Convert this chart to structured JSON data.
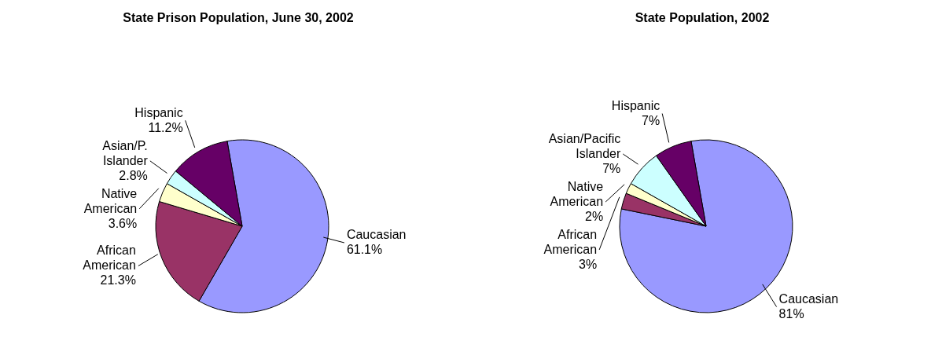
{
  "chart_data": [
    {
      "type": "pie",
      "title": "State Prison Population, June 30, 2002",
      "categories": [
        "Caucasian",
        "African American",
        "Native American",
        "Asian/P. Islander",
        "Hispanic"
      ],
      "values": [
        61.1,
        21.3,
        3.6,
        2.8,
        11.2
      ],
      "value_labels": [
        "61.1%",
        "21.3%",
        "3.6%",
        "2.8%",
        "11.2%"
      ],
      "colors": [
        "#9999ff",
        "#993366",
        "#ffffcc",
        "#ccffff",
        "#660066"
      ],
      "legend": false
    },
    {
      "type": "pie",
      "title": "State Population, 2002",
      "categories": [
        "Caucasian",
        "African American",
        "Native American",
        "Asian/Pacific Islander",
        "Hispanic"
      ],
      "values": [
        81,
        3,
        2,
        7,
        7
      ],
      "value_labels": [
        "81%",
        "3%",
        "2%",
        "7%",
        "7%"
      ],
      "colors": [
        "#9999ff",
        "#993366",
        "#ffffcc",
        "#ccffff",
        "#660066"
      ],
      "legend": false
    }
  ]
}
